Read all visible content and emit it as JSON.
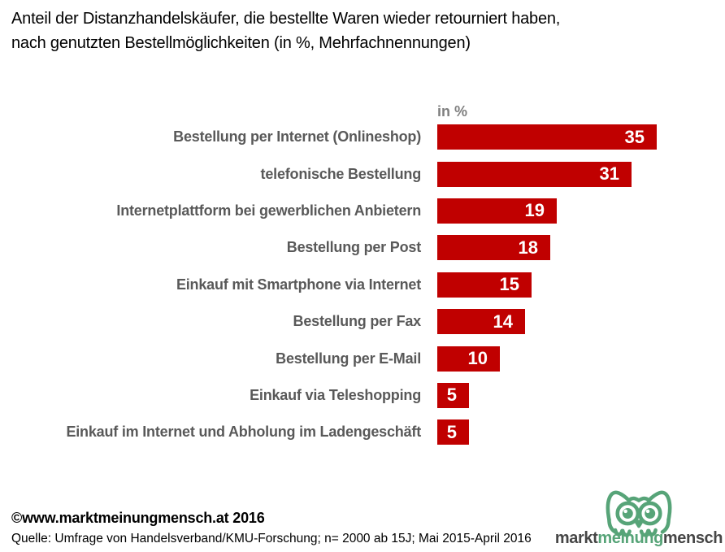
{
  "title": {
    "line1": "Anteil der Distanzhandelskäufer, die bestellte Waren wieder retourniert haben,",
    "line2": "nach genutzten Bestellmöglichkeiten (in %, Mehrfachnennungen)"
  },
  "chart_data": {
    "type": "bar",
    "orientation": "horizontal",
    "title": "Anteil der Distanzhandelskäufer, die bestellte Waren wieder retourniert haben, nach genutzten Bestellmöglichkeiten (in %, Mehrfachnennungen)",
    "unit_label": "in %",
    "categories": [
      "Bestellung per Internet (Onlineshop)",
      "telefonische Bestellung",
      "Internetplattform bei gewerblichen Anbietern",
      "Bestellung per Post",
      "Einkauf mit Smartphone via Internet",
      "Bestellung per Fax",
      "Bestellung per E-Mail",
      "Einkauf via Teleshopping",
      "Einkauf im Internet und Abholung im Ladengeschäft"
    ],
    "values": [
      35,
      31,
      19,
      18,
      15,
      14,
      10,
      5,
      5
    ],
    "xlim": [
      0,
      45
    ],
    "grid": false,
    "legend": false,
    "value_labels_inside_bars": true,
    "bar_color": "#c00000",
    "value_label_color": "#ffffff",
    "category_label_color": "#595959"
  },
  "footer": {
    "copyright": "©www.marktmeinungmensch.at 2016",
    "source": "Quelle: Umfrage von Handelsverband/KMU-Forschung; n= 2000 ab 15J; Mai 2015-April 2016"
  },
  "logo": {
    "markt": "markt",
    "meinung": "meinung",
    "mensch": "mensch",
    "green": "#57a478",
    "dark": "#464646",
    "icon": "owl-icon"
  }
}
